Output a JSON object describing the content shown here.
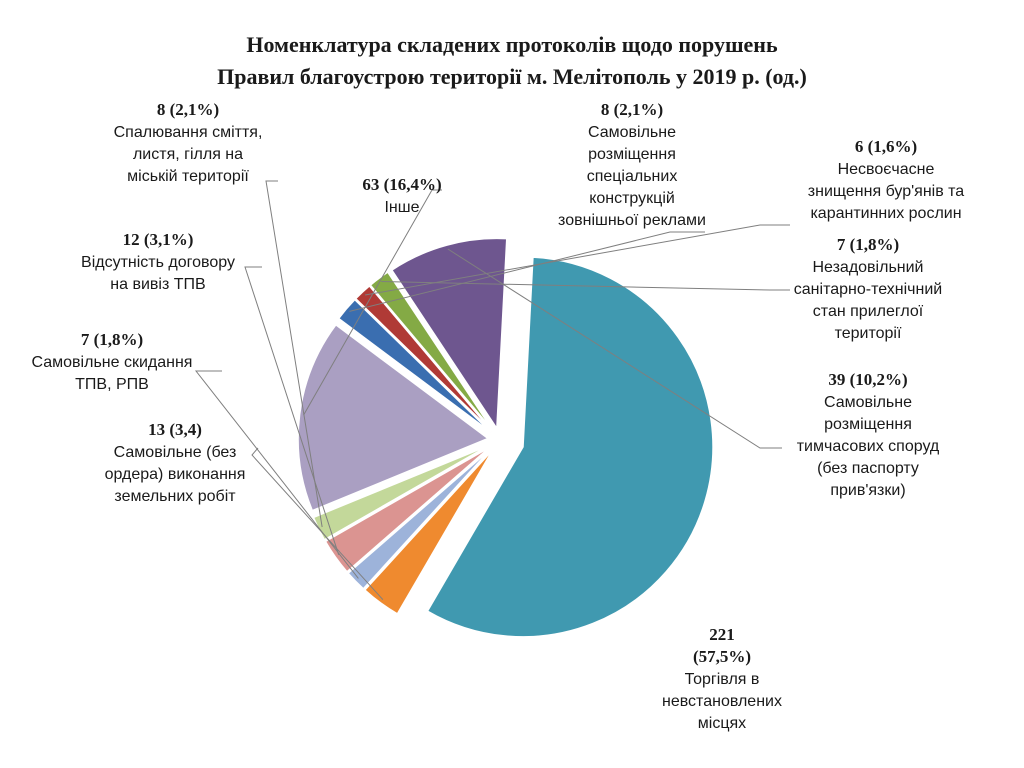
{
  "chart_data": {
    "type": "pie",
    "title": [
      "Номенклатура складених протоколів щодо порушень",
      "Правил благоустрою території м. Мелітополь у 2019 р. (од.)"
    ],
    "slices": [
      {
        "value": 221,
        "value_label": [
          "221",
          "(57,5%)"
        ],
        "label": [
          "Торгівля в",
          "невстановлених",
          "місцях"
        ],
        "color": "#4099b0"
      },
      {
        "value": 13,
        "value_label": [
          "13 (3,4)"
        ],
        "label": [
          "Самовільне (без",
          "ордера) виконання",
          "земельних робіт"
        ],
        "color": "#ef8a2f"
      },
      {
        "value": 7,
        "value_label": [
          "7 (1,8%)"
        ],
        "label": [
          "Самовільне скидання",
          "ТПВ, РПВ"
        ],
        "color": "#9db3da"
      },
      {
        "value": 12,
        "value_label": [
          "12 (3,1%)"
        ],
        "label": [
          "Відсутність договору",
          "на вивіз ТПВ"
        ],
        "color": "#db9491"
      },
      {
        "value": 8,
        "value_label": [
          "8 (2,1%)"
        ],
        "label": [
          "Спалювання сміття,",
          "листя, гілля на",
          "міській території"
        ],
        "color": "#c3d89a"
      },
      {
        "value": 63,
        "value_label": [
          "63 (16,4%)"
        ],
        "label": [
          "Інше"
        ],
        "color": "#aa9fc2"
      },
      {
        "value": 8,
        "value_label": [
          "8 (2,1%)"
        ],
        "label": [
          "Самовільне",
          "розміщення",
          "спеціальних",
          "конструкцій",
          "зовнішньої реклами"
        ],
        "color": "#3a6eb0"
      },
      {
        "value": 6,
        "value_label": [
          "6 (1,6%)"
        ],
        "label": [
          "Несвоєчасне",
          "знищення бур'янів та",
          "карантинних рослин"
        ],
        "color": "#b03a36"
      },
      {
        "value": 7,
        "value_label": [
          "7 (1,8%)"
        ],
        "label": [
          "Незадовільний",
          "санітарно-технічний",
          "стан прилеглої",
          "території"
        ],
        "color": "#84aa45"
      },
      {
        "value": 39,
        "value_label": [
          "39 (10,2%)"
        ],
        "label": [
          "Самовільне",
          "розміщення",
          "тимчасових споруд",
          "(без паспорту",
          "прив'язки)"
        ],
        "color": "#6e568f"
      }
    ]
  }
}
